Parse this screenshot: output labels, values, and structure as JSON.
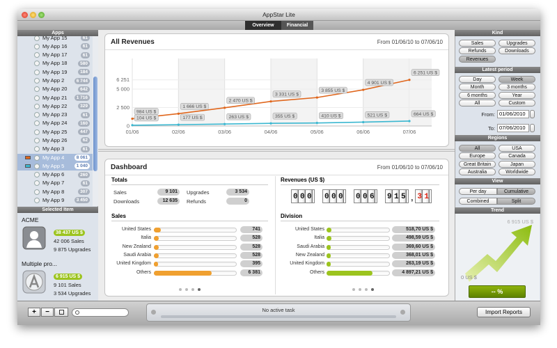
{
  "window": {
    "title": "AppStar Lite",
    "tabs": [
      "Overview",
      "Financial"
    ]
  },
  "sidebar": {
    "header": "Apps",
    "apps": [
      {
        "name": "My App 15",
        "badge": "61"
      },
      {
        "name": "My App 16",
        "badge": "61"
      },
      {
        "name": "My App 17",
        "badge": "61"
      },
      {
        "name": "My App 18",
        "badge": "580"
      },
      {
        "name": "My App 19",
        "badge": "184"
      },
      {
        "name": "My App 2",
        "badge": "6 744"
      },
      {
        "name": "My App 20",
        "badge": "642"
      },
      {
        "name": "My App 21",
        "badge": "1 716"
      },
      {
        "name": "My App 22",
        "badge": "329"
      },
      {
        "name": "My App 23",
        "badge": "61"
      },
      {
        "name": "My App 24",
        "badge": "160"
      },
      {
        "name": "My App 25",
        "badge": "447"
      },
      {
        "name": "My App 26",
        "badge": "62"
      },
      {
        "name": "My App 3",
        "badge": "61"
      },
      {
        "name": "My App 4",
        "badge": "8 061",
        "selected": true,
        "color": "#e0661c"
      },
      {
        "name": "My App 5",
        "badge": "1 040",
        "selected": true,
        "color": "#3ab7d0"
      },
      {
        "name": "My App 6",
        "badge": "260"
      },
      {
        "name": "My App 7",
        "badge": "61"
      },
      {
        "name": "My App 8",
        "badge": "307"
      },
      {
        "name": "My App 9",
        "badge": "3 450"
      }
    ],
    "selected_header": "Selected Item",
    "selected": [
      {
        "name": "ACME",
        "revenue": "38 437 US $",
        "sales": "42 006 Sales",
        "upgrades": "9 875 Upgrades"
      },
      {
        "name": "Multiple pro...",
        "revenue": "6 915 US $",
        "sales": "9 101 Sales",
        "upgrades": "3 534 Upgrades"
      }
    ]
  },
  "revenues": {
    "title": "All Revenues",
    "range": "From 01/06/10 to 07/06/10",
    "chart": {
      "type": "line",
      "categories": [
        "01/06",
        "02/06",
        "03/06",
        "04/06",
        "05/06",
        "06/06",
        "07/06"
      ],
      "series": [
        {
          "color": "#e0661c",
          "values": [
            984,
            1666,
            2470,
            3331,
            3855,
            4901,
            6251
          ],
          "value_labels": [
            "984 US $",
            "1 666 US $",
            "2 470 US $",
            "3 331 US $",
            "3 855 US $",
            "4 901 US $",
            "6 251 US $"
          ]
        },
        {
          "color": "#3ab7d0",
          "values": [
            104,
            177,
            263,
            355,
            410,
            521,
            664
          ],
          "value_labels": [
            "104 US $",
            "177 US $",
            "263 US $",
            "355 US $",
            "410 US $",
            "521 US $",
            "664 US $"
          ]
        }
      ],
      "ylim": [
        0,
        9150
      ],
      "yticks": [
        0,
        {
          "value": 2500,
          "label": "2 500"
        },
        {
          "value": 5000,
          "label": "5 000"
        },
        {
          "value": 6251,
          "label": "6 251"
        }
      ],
      "grid": true
    }
  },
  "dashboard": {
    "title": "Dashboard",
    "range": "From 01/06/10 to 07/06/10",
    "totals": {
      "title": "Totals",
      "items": [
        {
          "label": "Sales",
          "value": "9 101"
        },
        {
          "label": "Downloads",
          "value": "12 635"
        },
        {
          "label": "Upgrades",
          "value": "3 534"
        },
        {
          "label": "Refunds",
          "value": "0"
        }
      ]
    },
    "counter": {
      "title": "Revenues (US $)",
      "groups": [
        "000",
        "000",
        "006",
        "915"
      ],
      "separator": ",",
      "decimals": "31"
    },
    "sales": {
      "type": "bar",
      "title": "Sales",
      "color": "#f0a030",
      "categories": [
        "United States",
        "Italia",
        "New Zealand",
        "Saudi Arabia",
        "United Kingdom",
        "Others"
      ],
      "values": [
        741,
        528,
        528,
        528,
        395,
        6381
      ],
      "value_labels": [
        "741",
        "528",
        "528",
        "528",
        "395",
        "6 381"
      ]
    },
    "division": {
      "type": "bar",
      "title": "Division",
      "color": "#9cc41e",
      "categories": [
        "United States",
        "Italia",
        "Saudi Arabia",
        "New Zealand",
        "United Kingdom",
        "Others"
      ],
      "values": [
        518.7,
        498.59,
        369.6,
        368.01,
        263.19,
        4897.21
      ],
      "value_labels": [
        "518,70 US $",
        "498,59 US $",
        "369,60 US $",
        "368,01 US $",
        "263,19 US $",
        "4 897,21 US $"
      ]
    }
  },
  "controls": {
    "kind": {
      "header": "Kind",
      "options": [
        {
          "label": "Sales"
        },
        {
          "label": "Upgrades"
        },
        {
          "label": "Refunds"
        },
        {
          "label": "Downloads"
        },
        {
          "label": "Revenues",
          "selected": true
        }
      ]
    },
    "period": {
      "header": "Latest period",
      "options": [
        {
          "label": "Day"
        },
        {
          "label": "Week",
          "selected": true
        },
        {
          "label": "Month"
        },
        {
          "label": "3 months"
        },
        {
          "label": "6 months"
        },
        {
          "label": "Year"
        },
        {
          "label": "All"
        },
        {
          "label": "Custom"
        }
      ],
      "from_label": "From:",
      "from": "01/06/2010",
      "to_label": "To:",
      "to": "07/06/2010"
    },
    "regions": {
      "header": "Regions",
      "options": [
        {
          "label": "All",
          "selected": true
        },
        {
          "label": "USA"
        },
        {
          "label": "Europe"
        },
        {
          "label": "Canada"
        },
        {
          "label": "Great Britain"
        },
        {
          "label": "Japan"
        },
        {
          "label": "Australia"
        },
        {
          "label": "Worldwide"
        }
      ]
    },
    "view": {
      "header": "View",
      "options": [
        {
          "label": "Per day"
        },
        {
          "label": "Cumulative",
          "selected": true
        },
        {
          "label": "Combined"
        },
        {
          "label": "Split",
          "selected": true
        }
      ]
    },
    "trend": {
      "header": "Trend",
      "max": "6 915 US $",
      "min": "0 US $",
      "change": "-- %"
    }
  },
  "bottom": {
    "buttons": [
      "+",
      "−"
    ],
    "task": "No active task",
    "import": "Import Reports"
  }
}
